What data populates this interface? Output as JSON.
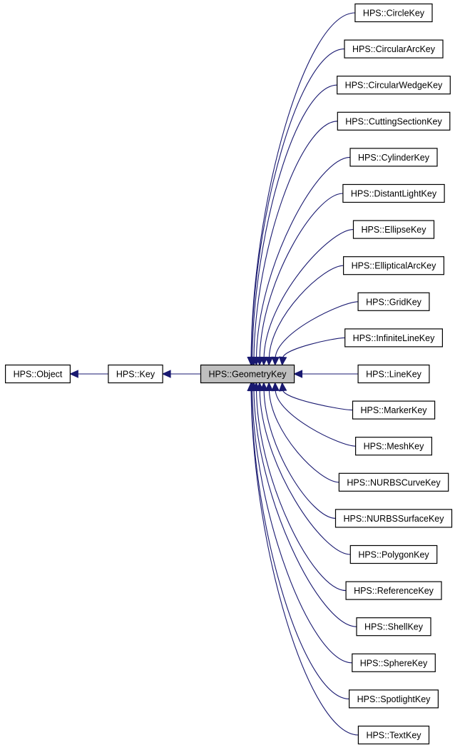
{
  "diagram": {
    "edge_color": "#191970",
    "highlight_fill": "#bfbfbf",
    "chain": [
      {
        "label": "HPS::Object"
      },
      {
        "label": "HPS::Key"
      },
      {
        "label": "HPS::GeometryKey",
        "highlighted": true
      }
    ],
    "children": [
      {
        "label": "HPS::CircleKey"
      },
      {
        "label": "HPS::CircularArcKey"
      },
      {
        "label": "HPS::CircularWedgeKey"
      },
      {
        "label": "HPS::CuttingSectionKey"
      },
      {
        "label": "HPS::CylinderKey"
      },
      {
        "label": "HPS::DistantLightKey"
      },
      {
        "label": "HPS::EllipseKey"
      },
      {
        "label": "HPS::EllipticalArcKey"
      },
      {
        "label": "HPS::GridKey"
      },
      {
        "label": "HPS::InfiniteLineKey"
      },
      {
        "label": "HPS::LineKey"
      },
      {
        "label": "HPS::MarkerKey"
      },
      {
        "label": "HPS::MeshKey"
      },
      {
        "label": "HPS::NURBSCurveKey"
      },
      {
        "label": "HPS::NURBSSurfaceKey"
      },
      {
        "label": "HPS::PolygonKey"
      },
      {
        "label": "HPS::ReferenceKey"
      },
      {
        "label": "HPS::ShellKey"
      },
      {
        "label": "HPS::SphereKey"
      },
      {
        "label": "HPS::SpotlightKey"
      },
      {
        "label": "HPS::TextKey"
      }
    ]
  }
}
